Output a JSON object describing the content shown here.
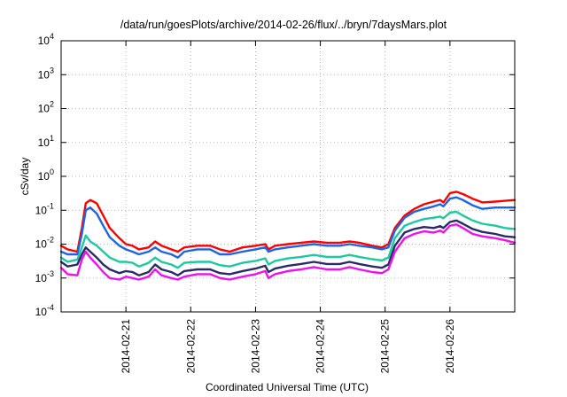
{
  "chart_data": {
    "type": "line",
    "title": "/data/run/goesPlots/archive/2014-02-26/flux/../bryn/7daysMars.plot",
    "xlabel": "Coordinated Universal Time (UTC)",
    "ylabel": "cSv/day",
    "y_scale": "log",
    "ylim": [
      0.0001,
      10000
    ],
    "xlim": [
      0,
      7
    ],
    "x_unit": "days from 2014-02-20 00:00 UTC",
    "grid": true,
    "y_ticks": [
      {
        "value": 0.0001,
        "base": "10",
        "exp": "-4"
      },
      {
        "value": 0.001,
        "base": "10",
        "exp": "-3"
      },
      {
        "value": 0.01,
        "base": "10",
        "exp": "-2"
      },
      {
        "value": 0.1,
        "base": "10",
        "exp": "-1"
      },
      {
        "value": 1,
        "base": "10",
        "exp": "0"
      },
      {
        "value": 10,
        "base": "10",
        "exp": "1"
      },
      {
        "value": 100,
        "base": "10",
        "exp": "2"
      },
      {
        "value": 1000,
        "base": "10",
        "exp": "3"
      },
      {
        "value": 10000,
        "base": "10",
        "exp": "4"
      }
    ],
    "x_ticks": [
      {
        "value": 1,
        "label": "2014-02-21"
      },
      {
        "value": 2,
        "label": "2014-02-22"
      },
      {
        "value": 3,
        "label": "2014-02-23"
      },
      {
        "value": 4,
        "label": "2014-02-24"
      },
      {
        "value": 5,
        "label": "2014-02-25"
      },
      {
        "value": 6,
        "label": "2014-02-26"
      }
    ],
    "series": [
      {
        "color": "#ff0000",
        "points": [
          [
            0,
            0.009
          ],
          [
            0.1,
            0.007
          ],
          [
            0.25,
            0.006
          ],
          [
            0.32,
            0.03
          ],
          [
            0.38,
            0.16
          ],
          [
            0.45,
            0.2
          ],
          [
            0.55,
            0.16
          ],
          [
            0.65,
            0.07
          ],
          [
            0.75,
            0.03
          ],
          [
            0.9,
            0.015
          ],
          [
            1.0,
            0.01
          ],
          [
            1.1,
            0.009
          ],
          [
            1.2,
            0.007
          ],
          [
            1.35,
            0.008
          ],
          [
            1.45,
            0.012
          ],
          [
            1.55,
            0.009
          ],
          [
            1.7,
            0.007
          ],
          [
            1.8,
            0.006
          ],
          [
            1.9,
            0.008
          ],
          [
            2.1,
            0.009
          ],
          [
            2.3,
            0.009
          ],
          [
            2.45,
            0.007
          ],
          [
            2.6,
            0.006
          ],
          [
            2.8,
            0.008
          ],
          [
            3.0,
            0.009
          ],
          [
            3.15,
            0.01
          ],
          [
            3.2,
            0.007
          ],
          [
            3.3,
            0.009
          ],
          [
            3.5,
            0.01
          ],
          [
            3.7,
            0.011
          ],
          [
            3.9,
            0.012
          ],
          [
            4.1,
            0.011
          ],
          [
            4.3,
            0.011
          ],
          [
            4.45,
            0.012
          ],
          [
            4.6,
            0.011
          ],
          [
            4.8,
            0.009
          ],
          [
            4.95,
            0.008
          ],
          [
            5.05,
            0.01
          ],
          [
            5.15,
            0.03
          ],
          [
            5.3,
            0.07
          ],
          [
            5.45,
            0.11
          ],
          [
            5.6,
            0.15
          ],
          [
            5.75,
            0.18
          ],
          [
            5.85,
            0.2
          ],
          [
            5.9,
            0.17
          ],
          [
            6.0,
            0.32
          ],
          [
            6.1,
            0.35
          ],
          [
            6.2,
            0.3
          ],
          [
            6.35,
            0.22
          ],
          [
            6.5,
            0.17
          ],
          [
            6.7,
            0.18
          ],
          [
            6.85,
            0.19
          ],
          [
            7.0,
            0.2
          ]
        ]
      },
      {
        "color": "#1e64e6",
        "points": [
          [
            0,
            0.006
          ],
          [
            0.1,
            0.005
          ],
          [
            0.25,
            0.005
          ],
          [
            0.32,
            0.02
          ],
          [
            0.38,
            0.1
          ],
          [
            0.45,
            0.12
          ],
          [
            0.55,
            0.08
          ],
          [
            0.65,
            0.035
          ],
          [
            0.75,
            0.016
          ],
          [
            0.9,
            0.009
          ],
          [
            1.0,
            0.007
          ],
          [
            1.1,
            0.006
          ],
          [
            1.2,
            0.005
          ],
          [
            1.35,
            0.006
          ],
          [
            1.45,
            0.008
          ],
          [
            1.55,
            0.006
          ],
          [
            1.7,
            0.005
          ],
          [
            1.8,
            0.004
          ],
          [
            1.9,
            0.006
          ],
          [
            2.1,
            0.007
          ],
          [
            2.3,
            0.007
          ],
          [
            2.45,
            0.005
          ],
          [
            2.6,
            0.005
          ],
          [
            2.8,
            0.006
          ],
          [
            3.0,
            0.007
          ],
          [
            3.15,
            0.008
          ],
          [
            3.2,
            0.006
          ],
          [
            3.3,
            0.007
          ],
          [
            3.5,
            0.008
          ],
          [
            3.7,
            0.009
          ],
          [
            3.9,
            0.01
          ],
          [
            4.1,
            0.009
          ],
          [
            4.3,
            0.009
          ],
          [
            4.45,
            0.01
          ],
          [
            4.6,
            0.009
          ],
          [
            4.8,
            0.008
          ],
          [
            4.95,
            0.007
          ],
          [
            5.05,
            0.008
          ],
          [
            5.15,
            0.025
          ],
          [
            5.3,
            0.06
          ],
          [
            5.45,
            0.09
          ],
          [
            5.6,
            0.11
          ],
          [
            5.75,
            0.13
          ],
          [
            5.85,
            0.15
          ],
          [
            5.9,
            0.13
          ],
          [
            6.0,
            0.22
          ],
          [
            6.1,
            0.24
          ],
          [
            6.2,
            0.2
          ],
          [
            6.35,
            0.14
          ],
          [
            6.5,
            0.11
          ],
          [
            6.7,
            0.12
          ],
          [
            6.85,
            0.12
          ],
          [
            7.0,
            0.12
          ]
        ]
      },
      {
        "color": "#1ec8a0",
        "points": [
          [
            0,
            0.004
          ],
          [
            0.1,
            0.003
          ],
          [
            0.25,
            0.0035
          ],
          [
            0.32,
            0.008
          ],
          [
            0.38,
            0.018
          ],
          [
            0.45,
            0.012
          ],
          [
            0.55,
            0.009
          ],
          [
            0.65,
            0.006
          ],
          [
            0.75,
            0.004
          ],
          [
            0.9,
            0.003
          ],
          [
            1.0,
            0.003
          ],
          [
            1.1,
            0.0028
          ],
          [
            1.2,
            0.0022
          ],
          [
            1.35,
            0.0028
          ],
          [
            1.45,
            0.004
          ],
          [
            1.55,
            0.003
          ],
          [
            1.7,
            0.0025
          ],
          [
            1.8,
            0.002
          ],
          [
            1.9,
            0.0028
          ],
          [
            2.1,
            0.003
          ],
          [
            2.3,
            0.003
          ],
          [
            2.45,
            0.0024
          ],
          [
            2.6,
            0.0022
          ],
          [
            2.8,
            0.0028
          ],
          [
            3.0,
            0.0032
          ],
          [
            3.15,
            0.0038
          ],
          [
            3.2,
            0.0025
          ],
          [
            3.3,
            0.0032
          ],
          [
            3.5,
            0.0038
          ],
          [
            3.7,
            0.0042
          ],
          [
            3.9,
            0.0048
          ],
          [
            4.1,
            0.0042
          ],
          [
            4.3,
            0.0042
          ],
          [
            4.45,
            0.0048
          ],
          [
            4.6,
            0.0042
          ],
          [
            4.8,
            0.0036
          ],
          [
            4.95,
            0.0033
          ],
          [
            5.05,
            0.004
          ],
          [
            5.15,
            0.015
          ],
          [
            5.3,
            0.035
          ],
          [
            5.45,
            0.045
          ],
          [
            5.6,
            0.055
          ],
          [
            5.75,
            0.06
          ],
          [
            5.85,
            0.065
          ],
          [
            5.9,
            0.058
          ],
          [
            6.0,
            0.085
          ],
          [
            6.1,
            0.09
          ],
          [
            6.2,
            0.07
          ],
          [
            6.35,
            0.05
          ],
          [
            6.5,
            0.04
          ],
          [
            6.7,
            0.035
          ],
          [
            6.85,
            0.03
          ],
          [
            7.0,
            0.028
          ]
        ]
      },
      {
        "color": "#2a2a6a",
        "points": [
          [
            0,
            0.003
          ],
          [
            0.1,
            0.0022
          ],
          [
            0.25,
            0.0025
          ],
          [
            0.32,
            0.005
          ],
          [
            0.38,
            0.008
          ],
          [
            0.45,
            0.006
          ],
          [
            0.55,
            0.004
          ],
          [
            0.65,
            0.0025
          ],
          [
            0.75,
            0.0018
          ],
          [
            0.9,
            0.0014
          ],
          [
            1.0,
            0.0016
          ],
          [
            1.1,
            0.0015
          ],
          [
            1.2,
            0.0012
          ],
          [
            1.35,
            0.0015
          ],
          [
            1.45,
            0.0025
          ],
          [
            1.55,
            0.0018
          ],
          [
            1.7,
            0.0015
          ],
          [
            1.8,
            0.0012
          ],
          [
            1.9,
            0.0016
          ],
          [
            2.1,
            0.0018
          ],
          [
            2.3,
            0.0018
          ],
          [
            2.45,
            0.0014
          ],
          [
            2.6,
            0.0013
          ],
          [
            2.8,
            0.0016
          ],
          [
            3.0,
            0.0019
          ],
          [
            3.15,
            0.0023
          ],
          [
            3.2,
            0.0015
          ],
          [
            3.3,
            0.0019
          ],
          [
            3.5,
            0.0023
          ],
          [
            3.7,
            0.0026
          ],
          [
            3.9,
            0.003
          ],
          [
            4.1,
            0.0026
          ],
          [
            4.3,
            0.0026
          ],
          [
            4.45,
            0.003
          ],
          [
            4.6,
            0.0026
          ],
          [
            4.8,
            0.0022
          ],
          [
            4.95,
            0.002
          ],
          [
            5.05,
            0.0025
          ],
          [
            5.15,
            0.009
          ],
          [
            5.3,
            0.022
          ],
          [
            5.45,
            0.028
          ],
          [
            5.6,
            0.032
          ],
          [
            5.75,
            0.03
          ],
          [
            5.85,
            0.034
          ],
          [
            5.9,
            0.03
          ],
          [
            6.0,
            0.045
          ],
          [
            6.1,
            0.05
          ],
          [
            6.2,
            0.04
          ],
          [
            6.35,
            0.028
          ],
          [
            6.5,
            0.023
          ],
          [
            6.7,
            0.02
          ],
          [
            6.85,
            0.017
          ],
          [
            7.0,
            0.016
          ]
        ]
      },
      {
        "color": "#ee10ee",
        "points": [
          [
            0,
            0.002
          ],
          [
            0.1,
            0.0013
          ],
          [
            0.25,
            0.0012
          ],
          [
            0.32,
            0.0035
          ],
          [
            0.38,
            0.006
          ],
          [
            0.45,
            0.004
          ],
          [
            0.55,
            0.0025
          ],
          [
            0.65,
            0.0015
          ],
          [
            0.75,
            0.001
          ],
          [
            0.9,
            0.0009
          ],
          [
            1.0,
            0.0011
          ],
          [
            1.1,
            0.001
          ],
          [
            1.2,
            0.0009
          ],
          [
            1.35,
            0.0011
          ],
          [
            1.45,
            0.0018
          ],
          [
            1.55,
            0.0012
          ],
          [
            1.7,
            0.001
          ],
          [
            1.8,
            0.0009
          ],
          [
            1.9,
            0.0011
          ],
          [
            2.1,
            0.0013
          ],
          [
            2.3,
            0.0013
          ],
          [
            2.45,
            0.001
          ],
          [
            2.6,
            0.0009
          ],
          [
            2.8,
            0.0011
          ],
          [
            3.0,
            0.0013
          ],
          [
            3.15,
            0.0016
          ],
          [
            3.2,
            0.001
          ],
          [
            3.3,
            0.0013
          ],
          [
            3.5,
            0.0016
          ],
          [
            3.7,
            0.0018
          ],
          [
            3.9,
            0.0021
          ],
          [
            4.1,
            0.0018
          ],
          [
            4.3,
            0.0018
          ],
          [
            4.45,
            0.0021
          ],
          [
            4.6,
            0.0018
          ],
          [
            4.8,
            0.0015
          ],
          [
            4.95,
            0.0014
          ],
          [
            5.05,
            0.0018
          ],
          [
            5.15,
            0.006
          ],
          [
            5.3,
            0.015
          ],
          [
            5.45,
            0.02
          ],
          [
            5.6,
            0.024
          ],
          [
            5.75,
            0.022
          ],
          [
            5.85,
            0.025
          ],
          [
            5.9,
            0.022
          ],
          [
            6.0,
            0.035
          ],
          [
            6.1,
            0.038
          ],
          [
            6.2,
            0.03
          ],
          [
            6.35,
            0.02
          ],
          [
            6.5,
            0.017
          ],
          [
            6.7,
            0.015
          ],
          [
            6.85,
            0.013
          ],
          [
            7.0,
            0.011
          ]
        ]
      }
    ]
  }
}
